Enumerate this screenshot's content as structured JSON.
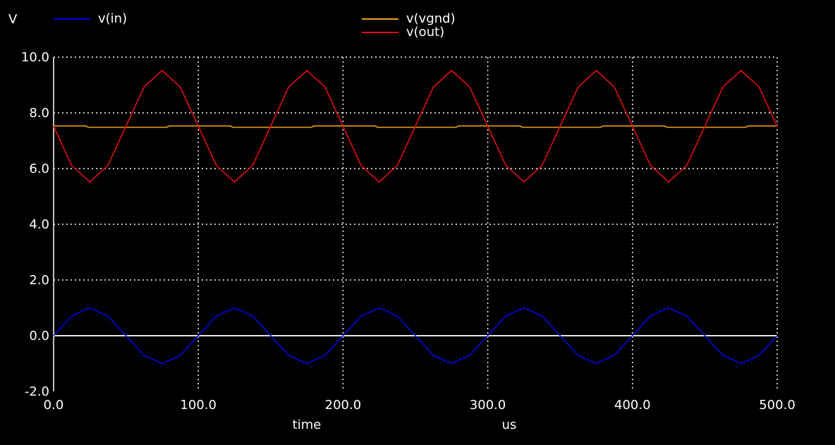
{
  "chart_data": {
    "type": "line",
    "ylabel": "V",
    "xlabel": "time",
    "xunit": "us",
    "xlim": [
      0,
      500
    ],
    "ylim": [
      -2,
      10
    ],
    "xticks": [
      0,
      100,
      200,
      300,
      400,
      500
    ],
    "xtick_labels": [
      "0.0",
      "100.0",
      "200.0",
      "300.0",
      "400.0",
      "500.0"
    ],
    "yticks": [
      -2,
      0,
      2,
      4,
      6,
      8,
      10
    ],
    "ytick_labels": [
      "-2.0",
      "0.0",
      "2.0",
      "4.0",
      "6.0",
      "8.0",
      "10.0"
    ],
    "grid": true,
    "legend_placement": "top",
    "series": [
      {
        "name": "v(in)",
        "color": "#0000e6",
        "x": [
          0,
          12.5,
          25,
          37.5,
          50,
          62.5,
          75,
          87.5,
          100,
          112.5,
          125,
          137.5,
          150,
          162.5,
          175,
          187.5,
          200,
          212.5,
          225,
          237.5,
          250,
          262.5,
          275,
          287.5,
          300,
          312.5,
          325,
          337.5,
          350,
          362.5,
          375,
          387.5,
          400,
          412.5,
          425,
          437.5,
          450,
          462.5,
          475,
          487.5,
          500
        ],
        "values": [
          0,
          0.71,
          1.0,
          0.71,
          0,
          -0.71,
          -1.0,
          -0.71,
          0,
          0.71,
          1.0,
          0.71,
          0,
          -0.71,
          -1.0,
          -0.71,
          0,
          0.71,
          1.0,
          0.71,
          0,
          -0.71,
          -1.0,
          -0.71,
          0,
          0.71,
          1.0,
          0.71,
          0,
          -0.71,
          -1.0,
          -0.71,
          0,
          0.71,
          1.0,
          0.71,
          0,
          -0.71,
          -1.0,
          -0.71,
          0
        ]
      },
      {
        "name": "v(vgnd)",
        "color": "#f0a020",
        "x": [
          0,
          22,
          24,
          78,
          80,
          122,
          124,
          178,
          180,
          222,
          224,
          278,
          280,
          322,
          324,
          378,
          380,
          422,
          424,
          478,
          480,
          500
        ],
        "values": [
          7.53,
          7.53,
          7.48,
          7.48,
          7.53,
          7.53,
          7.48,
          7.48,
          7.53,
          7.53,
          7.48,
          7.48,
          7.53,
          7.53,
          7.48,
          7.48,
          7.53,
          7.53,
          7.48,
          7.48,
          7.53,
          7.53
        ]
      },
      {
        "name": "v(out)",
        "color": "#e01010",
        "x": [
          0,
          12.5,
          25,
          37.5,
          50,
          62.5,
          75,
          87.5,
          100,
          112.5,
          125,
          137.5,
          150,
          162.5,
          175,
          187.5,
          200,
          212.5,
          225,
          237.5,
          250,
          262.5,
          275,
          287.5,
          300,
          312.5,
          325,
          337.5,
          350,
          362.5,
          375,
          387.5,
          400,
          412.5,
          425,
          437.5,
          450,
          462.5,
          475,
          487.5,
          500
        ],
        "values": [
          7.52,
          6.11,
          5.52,
          6.11,
          7.52,
          8.93,
          9.52,
          8.93,
          7.52,
          6.11,
          5.52,
          6.11,
          7.52,
          8.93,
          9.52,
          8.93,
          7.52,
          6.11,
          5.52,
          6.11,
          7.52,
          8.93,
          9.52,
          8.93,
          7.52,
          6.11,
          5.52,
          6.11,
          7.52,
          8.93,
          9.52,
          8.93,
          7.52,
          6.11,
          5.52,
          6.11,
          7.52,
          8.93,
          9.52,
          8.93,
          7.52
        ]
      }
    ]
  }
}
